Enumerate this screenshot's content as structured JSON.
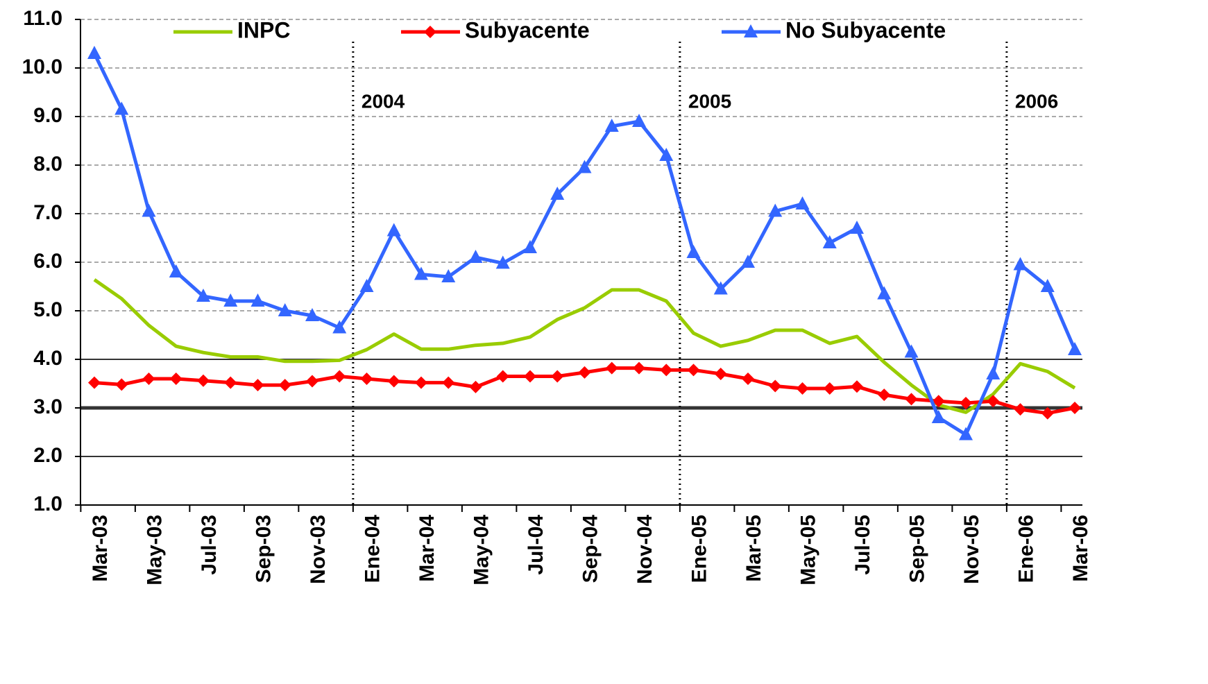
{
  "chart_data": {
    "type": "line",
    "categories": [
      "Mar-03",
      null,
      "May-03",
      null,
      "Jul-03",
      null,
      "Sep-03",
      null,
      "Nov-03",
      null,
      "Ene-04",
      null,
      "Mar-04",
      null,
      "May-04",
      null,
      "Jul-04",
      null,
      "Sep-04",
      null,
      "Nov-04",
      null,
      "Ene-05",
      null,
      "Mar-05",
      null,
      "May-05",
      null,
      "Jul-05",
      null,
      "Sep-05",
      null,
      "Nov-05",
      null,
      "Ene-06",
      null,
      "Mar-06"
    ],
    "series": [
      {
        "name": "INPC",
        "color": "#99cc00",
        "marker": "none",
        "values": [
          5.64,
          5.25,
          4.7,
          4.27,
          4.14,
          4.05,
          4.05,
          3.96,
          3.96,
          3.98,
          4.2,
          4.52,
          4.21,
          4.21,
          4.29,
          4.33,
          4.46,
          4.82,
          5.06,
          5.43,
          5.43,
          5.2,
          4.54,
          4.27,
          4.39,
          4.6,
          4.6,
          4.33,
          4.47,
          3.94,
          3.47,
          3.06,
          2.91,
          3.28,
          3.91,
          3.75,
          3.41
        ]
      },
      {
        "name": "Subyacente",
        "color": "#ff0000",
        "marker": "diamond",
        "values": [
          3.52,
          3.48,
          3.6,
          3.6,
          3.56,
          3.52,
          3.47,
          3.47,
          3.55,
          3.65,
          3.6,
          3.55,
          3.52,
          3.52,
          3.43,
          3.65,
          3.65,
          3.65,
          3.73,
          3.82,
          3.82,
          3.78,
          3.78,
          3.7,
          3.6,
          3.45,
          3.4,
          3.4,
          3.44,
          3.27,
          3.18,
          3.14,
          3.1,
          3.14,
          2.97,
          2.89,
          3.0
        ]
      },
      {
        "name": "No Subyacente",
        "color": "#3366ff",
        "marker": "triangle",
        "values": [
          10.3,
          9.15,
          7.05,
          5.8,
          5.3,
          5.2,
          5.2,
          5.0,
          4.9,
          4.65,
          5.5,
          6.65,
          5.75,
          5.7,
          6.1,
          5.98,
          6.3,
          7.4,
          7.95,
          8.8,
          8.9,
          8.2,
          6.2,
          5.45,
          6.0,
          7.05,
          7.2,
          6.4,
          6.7,
          5.35,
          4.15,
          2.8,
          2.45,
          3.7,
          5.95,
          5.5,
          4.2
        ]
      }
    ],
    "ylim": [
      1,
      11
    ],
    "yticks": [
      {
        "value": 1,
        "label": "1.0"
      },
      {
        "value": 2,
        "label": "2.0"
      },
      {
        "value": 3,
        "label": "3.0"
      },
      {
        "value": 4,
        "label": "4.0"
      },
      {
        "value": 5,
        "label": "5.0"
      },
      {
        "value": 6,
        "label": "6.0"
      },
      {
        "value": 7,
        "label": "7.0"
      },
      {
        "value": 8,
        "label": "8.0"
      },
      {
        "value": 9,
        "label": "9.0"
      },
      {
        "value": 10,
        "label": "10.0"
      },
      {
        "value": 11,
        "label": "11.0"
      }
    ],
    "grid": "dashed",
    "reference_lines": [
      2,
      3,
      4
    ],
    "annotations": [
      {
        "text": "2004",
        "x": 9.5
      },
      {
        "text": "2005",
        "x": 21.5
      },
      {
        "text": "2006",
        "x": 33.5
      }
    ],
    "legend": "top"
  }
}
